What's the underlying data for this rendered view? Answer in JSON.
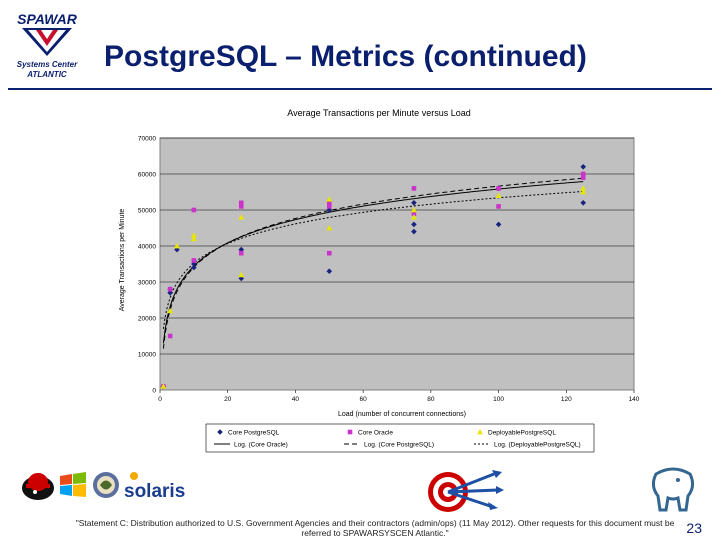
{
  "header": {
    "title": "PostgreSQL – Metrics (continued)",
    "logo_text_top": "SPAWAR",
    "logo_text_mid": "Systems Center",
    "logo_text_bot": "ATLANTIC"
  },
  "footer": {
    "note": "\"Statement C: Distribution authorized to U.S. Government Agencies and their contractors (admin/ops) (11 May 2012). Other requests for this document must be referred to SPAWARSYSCEN Atlantic.\"",
    "page_number": "23",
    "solaris_label": "solaris"
  },
  "colors": {
    "title": "#0a1f6e",
    "plot_bg": "#c0c0c0",
    "series_postgres": "#1a237e",
    "series_oracle": "#cc33cc",
    "series_deployable": "#e6e600"
  },
  "chart_data": {
    "type": "scatter",
    "title": "Average Transactions per Minute versus Load",
    "xlabel": "Load (number of concurrent connections)",
    "ylabel": "Average Transactions per Minute",
    "xlim": [
      0,
      140
    ],
    "ylim": [
      0,
      70000
    ],
    "xticks": [
      "0",
      "20",
      "40",
      "60",
      "80",
      "100",
      "120",
      "140"
    ],
    "yticks": [
      "0",
      "10000",
      "20000",
      "30000",
      "40000",
      "50000",
      "60000",
      "70000"
    ],
    "grid": true,
    "series": [
      {
        "name": "Core PostgreSQL",
        "marker": "diamond",
        "points": [
          [
            1,
            1000
          ],
          [
            3,
            27000
          ],
          [
            3,
            28000
          ],
          [
            5,
            39000
          ],
          [
            10,
            34000
          ],
          [
            10,
            35000
          ],
          [
            24,
            31000
          ],
          [
            24,
            39000
          ],
          [
            50,
            33000
          ],
          [
            50,
            50000
          ],
          [
            75,
            44000
          ],
          [
            75,
            46000
          ],
          [
            75,
            52000
          ],
          [
            100,
            46000
          ],
          [
            100,
            56000
          ],
          [
            125,
            52000
          ],
          [
            125,
            62000
          ]
        ]
      },
      {
        "name": "Core Oracle",
        "marker": "square",
        "points": [
          [
            1,
            1000
          ],
          [
            3,
            15000
          ],
          [
            3,
            28000
          ],
          [
            10,
            36000
          ],
          [
            10,
            50000
          ],
          [
            24,
            38000
          ],
          [
            24,
            51000
          ],
          [
            24,
            52000
          ],
          [
            50,
            38000
          ],
          [
            50,
            51000
          ],
          [
            50,
            52000
          ],
          [
            75,
            49000
          ],
          [
            75,
            56000
          ],
          [
            100,
            51000
          ],
          [
            100,
            56000
          ],
          [
            125,
            59000
          ],
          [
            125,
            60000
          ]
        ]
      },
      {
        "name": "DeployablePostgreSQL",
        "marker": "triangle",
        "points": [
          [
            1,
            1000
          ],
          [
            3,
            22000
          ],
          [
            5,
            40000
          ],
          [
            10,
            42000
          ],
          [
            10,
            43000
          ],
          [
            24,
            32000
          ],
          [
            24,
            48000
          ],
          [
            50,
            45000
          ],
          [
            50,
            53000
          ],
          [
            75,
            48000
          ],
          [
            75,
            50000
          ],
          [
            100,
            54000
          ],
          [
            125,
            55000
          ],
          [
            125,
            56000
          ]
        ]
      }
    ],
    "trendlines": [
      {
        "name": "Log. (Core Oracle)",
        "style": "solid",
        "a": 9300,
        "b": 13000
      },
      {
        "name": "Log. (Core PostgreSQL)",
        "style": "dashed",
        "a": 9800,
        "b": 11500
      },
      {
        "name": "Log. (DeployablePostgreSQL)",
        "style": "dotted",
        "a": 7900,
        "b": 17000
      }
    ]
  }
}
